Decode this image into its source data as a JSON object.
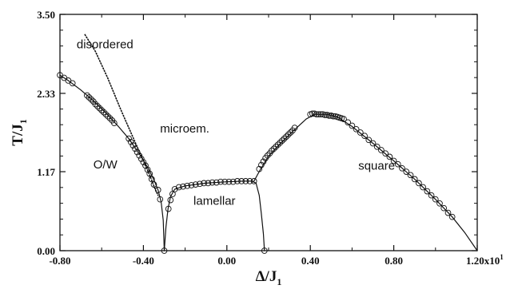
{
  "chart_data": {
    "type": "scatter",
    "xlabel": "Δ/J",
    "xlabel_sub": "1",
    "ylabel": "T/J",
    "ylabel_sub": "1",
    "xlim": [
      -0.8,
      1.2
    ],
    "ylim": [
      0.0,
      3.5
    ],
    "x_ticks": [
      -0.8,
      -0.4,
      0.0,
      0.4,
      0.8,
      1.2
    ],
    "x_tick_labels": [
      "-0.80",
      "-0.40",
      "0.00",
      "0.40",
      "0.80",
      "1.20x10"
    ],
    "x_tick_exponent": "1",
    "y_ticks": [
      0.0,
      1.17,
      2.33,
      3.5
    ],
    "y_tick_labels": [
      "0.00",
      "1.17",
      "2.33",
      "3.50"
    ],
    "grid": false,
    "regions": [
      {
        "label": "disordered",
        "x": -0.72,
        "y": 3.0
      },
      {
        "label": "microem.",
        "x": -0.32,
        "y": 1.75
      },
      {
        "label": "O/W",
        "x": -0.64,
        "y": 1.22
      },
      {
        "label": "lamellar",
        "x": -0.16,
        "y": 0.68
      },
      {
        "label": "square",
        "x": 0.63,
        "y": 1.2
      }
    ],
    "series": [
      {
        "kind": "line",
        "style": "solid",
        "points": [
          [
            -0.8,
            2.6
          ],
          [
            -0.76,
            2.52
          ],
          [
            -0.7,
            2.38
          ],
          [
            -0.64,
            2.22
          ],
          [
            -0.58,
            2.04
          ],
          [
            -0.52,
            1.84
          ],
          [
            -0.47,
            1.66
          ],
          [
            -0.43,
            1.48
          ],
          [
            -0.4,
            1.34
          ],
          [
            -0.37,
            1.18
          ],
          [
            -0.35,
            1.05
          ],
          [
            -0.33,
            0.9
          ],
          [
            -0.315,
            0.72
          ],
          [
            -0.305,
            0.45
          ],
          [
            -0.3,
            0.0
          ]
        ]
      },
      {
        "kind": "line",
        "style": "solid",
        "points": [
          [
            -0.3,
            0.0
          ],
          [
            -0.292,
            0.35
          ],
          [
            -0.282,
            0.62
          ],
          [
            -0.27,
            0.8
          ],
          [
            -0.25,
            0.91
          ],
          [
            -0.2,
            0.96
          ],
          [
            -0.1,
            1.0
          ],
          [
            0.0,
            1.02
          ],
          [
            0.08,
            1.03
          ],
          [
            0.12,
            1.03
          ],
          [
            0.14,
            1.0
          ],
          [
            0.155,
            0.82
          ],
          [
            0.165,
            0.55
          ],
          [
            0.175,
            0.25
          ],
          [
            0.18,
            0.0
          ]
        ]
      },
      {
        "kind": "line",
        "style": "solid",
        "points": [
          [
            0.13,
            1.03
          ],
          [
            0.16,
            1.2
          ],
          [
            0.2,
            1.4
          ],
          [
            0.26,
            1.6
          ],
          [
            0.32,
            1.78
          ],
          [
            0.38,
            1.95
          ],
          [
            0.42,
            2.02
          ],
          [
            0.48,
            2.02
          ],
          [
            0.53,
            1.98
          ],
          [
            0.6,
            1.84
          ],
          [
            0.7,
            1.59
          ],
          [
            0.8,
            1.33
          ],
          [
            0.9,
            1.06
          ],
          [
            1.0,
            0.76
          ],
          [
            1.08,
            0.5
          ],
          [
            1.14,
            0.27
          ],
          [
            1.2,
            0.0
          ]
        ]
      },
      {
        "kind": "line",
        "style": "dotted",
        "points": [
          [
            -0.68,
            3.2
          ],
          [
            -0.63,
            2.95
          ],
          [
            -0.57,
            2.55
          ],
          [
            -0.51,
            2.1
          ],
          [
            -0.46,
            1.75
          ],
          [
            -0.41,
            1.4
          ],
          [
            -0.37,
            1.12
          ],
          [
            -0.345,
            0.92
          ],
          [
            -0.33,
            0.82
          ]
        ]
      },
      {
        "kind": "markers",
        "marker": "open-circle",
        "points": [
          [
            -0.8,
            2.6
          ],
          [
            -0.78,
            2.56
          ],
          [
            -0.76,
            2.52
          ],
          [
            -0.74,
            2.48
          ],
          [
            -0.67,
            2.3
          ],
          [
            -0.66,
            2.27
          ],
          [
            -0.65,
            2.24
          ],
          [
            -0.64,
            2.21
          ],
          [
            -0.63,
            2.17
          ],
          [
            -0.62,
            2.14
          ],
          [
            -0.61,
            2.11
          ],
          [
            -0.6,
            2.08
          ],
          [
            -0.59,
            2.05
          ],
          [
            -0.58,
            2.02
          ],
          [
            -0.57,
            1.99
          ],
          [
            -0.56,
            1.96
          ],
          [
            -0.55,
            1.93
          ],
          [
            -0.54,
            1.89
          ],
          [
            -0.47,
            1.66
          ],
          [
            -0.46,
            1.61
          ],
          [
            -0.45,
            1.56
          ],
          [
            -0.44,
            1.51
          ],
          [
            -0.43,
            1.46
          ],
          [
            -0.42,
            1.41
          ],
          [
            -0.41,
            1.36
          ],
          [
            -0.4,
            1.31
          ],
          [
            -0.39,
            1.26
          ],
          [
            -0.38,
            1.2
          ],
          [
            -0.37,
            1.14
          ],
          [
            -0.36,
            1.06
          ],
          [
            -0.35,
            0.98
          ],
          [
            -0.33,
            0.9
          ],
          [
            -0.32,
            0.76
          ],
          [
            -0.3,
            0.0
          ],
          [
            -0.28,
            0.62
          ],
          [
            -0.27,
            0.75
          ],
          [
            -0.26,
            0.84
          ],
          [
            -0.25,
            0.91
          ],
          [
            -0.23,
            0.94
          ],
          [
            -0.21,
            0.95
          ],
          [
            -0.19,
            0.96
          ],
          [
            -0.17,
            0.97
          ],
          [
            -0.15,
            0.98
          ],
          [
            -0.13,
            0.99
          ],
          [
            -0.11,
            1.0
          ],
          [
            -0.09,
            1.0
          ],
          [
            -0.07,
            1.01
          ],
          [
            -0.05,
            1.01
          ],
          [
            -0.03,
            1.02
          ],
          [
            -0.01,
            1.02
          ],
          [
            0.01,
            1.02
          ],
          [
            0.03,
            1.02
          ],
          [
            0.05,
            1.03
          ],
          [
            0.07,
            1.03
          ],
          [
            0.09,
            1.03
          ],
          [
            0.11,
            1.03
          ],
          [
            0.13,
            1.03
          ],
          [
            0.18,
            0.0
          ],
          [
            0.155,
            1.21
          ],
          [
            0.165,
            1.27
          ],
          [
            0.175,
            1.32
          ],
          [
            0.185,
            1.37
          ],
          [
            0.195,
            1.41
          ],
          [
            0.205,
            1.44
          ],
          [
            0.215,
            1.48
          ],
          [
            0.225,
            1.51
          ],
          [
            0.235,
            1.54
          ],
          [
            0.245,
            1.57
          ],
          [
            0.255,
            1.6
          ],
          [
            0.265,
            1.63
          ],
          [
            0.275,
            1.66
          ],
          [
            0.285,
            1.69
          ],
          [
            0.295,
            1.72
          ],
          [
            0.305,
            1.75
          ],
          [
            0.315,
            1.78
          ],
          [
            0.325,
            1.82
          ],
          [
            0.4,
            2.02
          ],
          [
            0.41,
            2.03
          ],
          [
            0.42,
            2.03
          ],
          [
            0.43,
            2.02
          ],
          [
            0.44,
            2.02
          ],
          [
            0.45,
            2.02
          ],
          [
            0.46,
            2.02
          ],
          [
            0.47,
            2.01
          ],
          [
            0.48,
            2.01
          ],
          [
            0.49,
            2.0
          ],
          [
            0.5,
            2.0
          ],
          [
            0.51,
            1.99
          ],
          [
            0.52,
            1.99
          ],
          [
            0.53,
            1.98
          ],
          [
            0.54,
            1.97
          ],
          [
            0.55,
            1.96
          ],
          [
            0.56,
            1.95
          ],
          [
            0.58,
            1.9
          ],
          [
            0.6,
            1.85
          ],
          [
            0.62,
            1.8
          ],
          [
            0.64,
            1.75
          ],
          [
            0.66,
            1.7
          ],
          [
            0.68,
            1.64
          ],
          [
            0.7,
            1.59
          ],
          [
            0.72,
            1.54
          ],
          [
            0.74,
            1.49
          ],
          [
            0.76,
            1.44
          ],
          [
            0.78,
            1.39
          ],
          [
            0.8,
            1.33
          ],
          [
            0.82,
            1.28
          ],
          [
            0.84,
            1.22
          ],
          [
            0.86,
            1.17
          ],
          [
            0.88,
            1.12
          ],
          [
            0.9,
            1.06
          ],
          [
            0.92,
            1.0
          ],
          [
            0.94,
            0.94
          ],
          [
            0.96,
            0.88
          ],
          [
            0.98,
            0.82
          ],
          [
            1.0,
            0.76
          ],
          [
            1.02,
            0.7
          ],
          [
            1.04,
            0.63
          ],
          [
            1.06,
            0.56
          ],
          [
            1.08,
            0.5
          ]
        ]
      }
    ]
  }
}
